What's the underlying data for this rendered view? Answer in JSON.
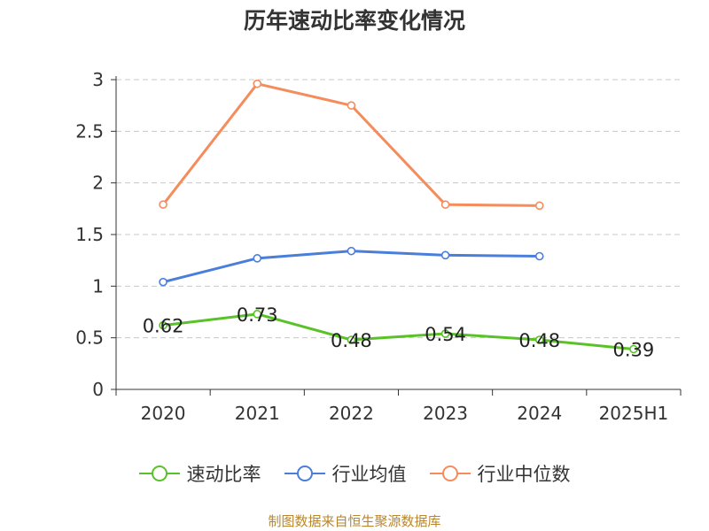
{
  "chart_data": {
    "type": "line",
    "title": "历年速动比率变化情况",
    "categories": [
      "2020",
      "2021",
      "2022",
      "2023",
      "2024",
      "2025H1"
    ],
    "ylim": [
      0,
      3
    ],
    "yticks": [
      "0",
      "0.5",
      "1",
      "1.5",
      "2",
      "2.5",
      "3"
    ],
    "grid": true,
    "legend_position": "bottom",
    "series": [
      {
        "name": "速动比率",
        "color": "#5ac229",
        "values": [
          0.62,
          0.73,
          0.48,
          0.54,
          0.48,
          0.39
        ],
        "labels": [
          "0.62",
          "0.73",
          "0.48",
          "0.54",
          "0.48",
          "0.39"
        ],
        "show_labels": true
      },
      {
        "name": "行业均值",
        "color": "#4a7edb",
        "values": [
          1.04,
          1.27,
          1.34,
          1.3,
          1.29,
          null
        ],
        "show_labels": false
      },
      {
        "name": "行业中位数",
        "color": "#f48c5c",
        "values": [
          1.79,
          2.96,
          2.75,
          1.79,
          1.78,
          null
        ],
        "show_labels": false
      }
    ]
  },
  "source_text": "制图数据来自恒生聚源数据库"
}
